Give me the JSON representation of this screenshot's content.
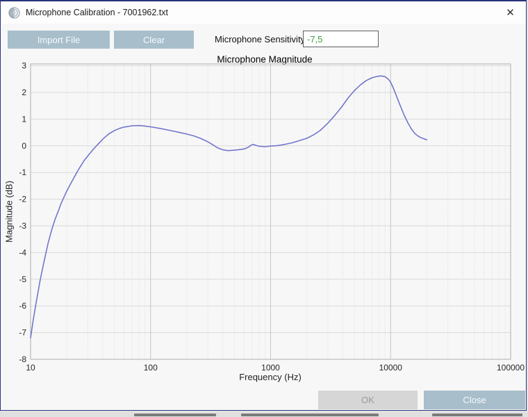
{
  "window": {
    "title": "Microphone Calibration - 7001962.txt",
    "close_glyph": "✕"
  },
  "toolbar": {
    "import_label": "Import File",
    "clear_label": "Clear",
    "sensitivity_label": "Microphone Sensitivity",
    "sensitivity_value": "-7,5"
  },
  "footer": {
    "ok_label": "OK",
    "close_label": "Close"
  },
  "icons": {
    "app_icon": "speaker-rings-icon",
    "close_icon": "close-x-icon"
  },
  "colors": {
    "accent_button": "#a8bfcb",
    "disabled_button": "#d6d6d6",
    "window_border": "#2a357f",
    "sensitivity_text": "#3a9d3e",
    "curve": "#7276cb",
    "grid_major": "#c6c6c6",
    "grid_minor": "#d9d9d9",
    "plot_border": "#adadad"
  },
  "chart_data": {
    "type": "line",
    "title": "Microphone Magnitude",
    "xlabel": "Frequency (Hz)",
    "ylabel": "Magnitude (dB)",
    "x_scale": "log",
    "xlim": [
      10,
      100000
    ],
    "ylim": [
      -8,
      3
    ],
    "x_ticks": [
      10,
      100,
      1000,
      10000,
      100000
    ],
    "y_ticks": [
      3,
      2,
      1,
      0,
      -1,
      -2,
      -3,
      -4,
      -5,
      -6,
      -7,
      -8
    ],
    "grid": true,
    "legend": "none",
    "series": [
      {
        "name": "microphone-response",
        "points": [
          [
            10,
            -7.2
          ],
          [
            10.5,
            -6.55
          ],
          [
            11,
            -6.0
          ],
          [
            12,
            -5.05
          ],
          [
            13,
            -4.3
          ],
          [
            14,
            -3.65
          ],
          [
            15,
            -3.15
          ],
          [
            16,
            -2.75
          ],
          [
            17,
            -2.45
          ],
          [
            18,
            -2.15
          ],
          [
            20,
            -1.7
          ],
          [
            22,
            -1.35
          ],
          [
            25,
            -0.9
          ],
          [
            28,
            -0.55
          ],
          [
            30,
            -0.38
          ],
          [
            33,
            -0.15
          ],
          [
            36,
            0.03
          ],
          [
            40,
            0.25
          ],
          [
            45,
            0.45
          ],
          [
            50,
            0.57
          ],
          [
            55,
            0.65
          ],
          [
            60,
            0.7
          ],
          [
            70,
            0.75
          ],
          [
            80,
            0.76
          ],
          [
            90,
            0.74
          ],
          [
            100,
            0.71
          ],
          [
            120,
            0.65
          ],
          [
            140,
            0.59
          ],
          [
            170,
            0.51
          ],
          [
            200,
            0.44
          ],
          [
            230,
            0.37
          ],
          [
            260,
            0.28
          ],
          [
            300,
            0.15
          ],
          [
            330,
            0.04
          ],
          [
            360,
            -0.07
          ],
          [
            400,
            -0.15
          ],
          [
            440,
            -0.18
          ],
          [
            480,
            -0.17
          ],
          [
            530,
            -0.15
          ],
          [
            580,
            -0.13
          ],
          [
            620,
            -0.1
          ],
          [
            660,
            -0.04
          ],
          [
            690,
            0.03
          ],
          [
            720,
            0.05
          ],
          [
            760,
            0.01
          ],
          [
            820,
            -0.02
          ],
          [
            900,
            -0.03
          ],
          [
            1000,
            -0.01
          ],
          [
            1150,
            0.01
          ],
          [
            1300,
            0.05
          ],
          [
            1500,
            0.11
          ],
          [
            1700,
            0.18
          ],
          [
            2000,
            0.28
          ],
          [
            2300,
            0.42
          ],
          [
            2600,
            0.58
          ],
          [
            3000,
            0.85
          ],
          [
            3400,
            1.12
          ],
          [
            3900,
            1.45
          ],
          [
            4400,
            1.78
          ],
          [
            5000,
            2.07
          ],
          [
            5600,
            2.28
          ],
          [
            6300,
            2.45
          ],
          [
            7000,
            2.55
          ],
          [
            7700,
            2.6
          ],
          [
            8300,
            2.62
          ],
          [
            9000,
            2.59
          ],
          [
            9600,
            2.49
          ],
          [
            10000,
            2.38
          ],
          [
            10500,
            2.18
          ],
          [
            11000,
            1.95
          ],
          [
            12000,
            1.52
          ],
          [
            13000,
            1.14
          ],
          [
            14000,
            0.84
          ],
          [
            15000,
            0.61
          ],
          [
            16000,
            0.45
          ],
          [
            17000,
            0.36
          ],
          [
            18000,
            0.3
          ],
          [
            19000,
            0.26
          ],
          [
            20000,
            0.23
          ]
        ]
      }
    ]
  }
}
